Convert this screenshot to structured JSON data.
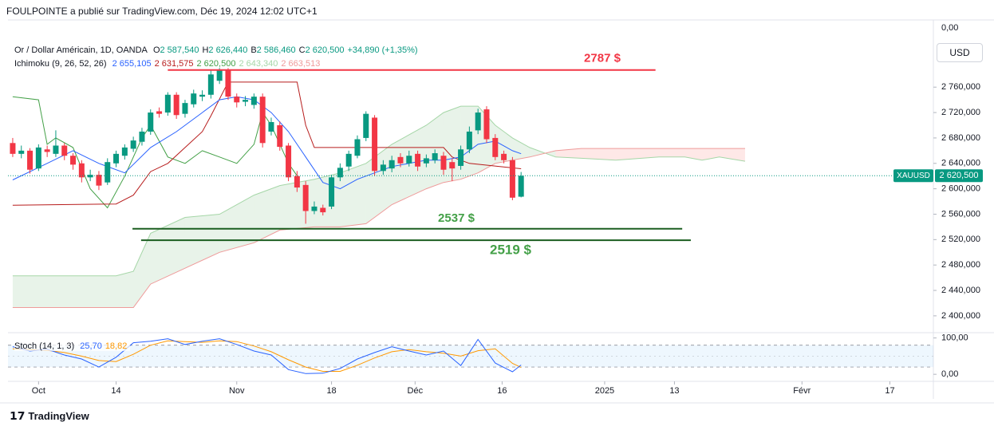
{
  "header": {
    "publisher": "FOULPOINTE a publié sur TradingView.com, Déc 19, 2024 12:02 UTC+1",
    "top_value": "0,00",
    "currency": "USD",
    "footer": "TradingView"
  },
  "chart_data": {
    "type": "candlestick",
    "symbol_title": "Or / Dollar Américain, 1D, OANDA",
    "ohlc_legend": [
      {
        "key": "O",
        "value": 2587.54,
        "label": "2 587,540"
      },
      {
        "key": "H",
        "value": 2626.44,
        "label": "2 626,440"
      },
      {
        "key": "B",
        "value": 2586.46,
        "label": "2 586,460"
      },
      {
        "key": "C",
        "value": 2620.5,
        "label": "2 620,500"
      }
    ],
    "change": {
      "value": 34.89,
      "label": "+34,890 (+1,35%)"
    },
    "up_color": "#089981",
    "down_color": "#f23645",
    "x": [
      0,
      1,
      2,
      3,
      4,
      5,
      6,
      7,
      8,
      9,
      10,
      11,
      12,
      13,
      14,
      15,
      16,
      17,
      18,
      19,
      20,
      21,
      22,
      23,
      24,
      25,
      26,
      27,
      28,
      29,
      30,
      31,
      32,
      33,
      34,
      35,
      36,
      37,
      38,
      39,
      40,
      41,
      42,
      43,
      44,
      45,
      46,
      47,
      48,
      49,
      50,
      51,
      52,
      53,
      54,
      55,
      56,
      57,
      58,
      59
    ],
    "open": [
      2672,
      2655,
      2660,
      2632,
      2662,
      2655,
      2668,
      2652,
      2640,
      2618,
      2622,
      2610,
      2640,
      2652,
      2663,
      2674,
      2690,
      2722,
      2720,
      2748,
      2718,
      2733,
      2745,
      2748,
      2770,
      2787,
      2745,
      2737,
      2732,
      2745,
      2690,
      2700,
      2668,
      2620,
      2606,
      2565,
      2570,
      2572,
      2618,
      2635,
      2652,
      2680,
      2712,
      2628,
      2632,
      2650,
      2640,
      2655,
      2640,
      2645,
      2652,
      2642,
      2636,
      2662,
      2692,
      2725,
      2680,
      2655,
      2645,
      2587.54
    ],
    "high": [
      2680,
      2668,
      2664,
      2670,
      2668,
      2692,
      2672,
      2656,
      2645,
      2630,
      2628,
      2648,
      2660,
      2670,
      2682,
      2696,
      2725,
      2728,
      2752,
      2752,
      2740,
      2756,
      2755,
      2786,
      2790,
      2790,
      2750,
      2746,
      2750,
      2750,
      2712,
      2706,
      2672,
      2628,
      2612,
      2580,
      2575,
      2622,
      2640,
      2660,
      2684,
      2722,
      2716,
      2645,
      2652,
      2656,
      2660,
      2660,
      2654,
      2662,
      2658,
      2648,
      2668,
      2698,
      2726,
      2730,
      2686,
      2660,
      2650,
      2626.44
    ],
    "low": [
      2650,
      2648,
      2624,
      2628,
      2650,
      2650,
      2645,
      2630,
      2610,
      2612,
      2598,
      2606,
      2634,
      2646,
      2658,
      2668,
      2685,
      2712,
      2715,
      2710,
      2712,
      2728,
      2738,
      2742,
      2765,
      2740,
      2728,
      2730,
      2726,
      2665,
      2684,
      2660,
      2612,
      2595,
      2545,
      2560,
      2558,
      2568,
      2612,
      2628,
      2648,
      2675,
      2620,
      2622,
      2626,
      2634,
      2635,
      2628,
      2634,
      2640,
      2622,
      2612,
      2630,
      2656,
      2686,
      2672,
      2645,
      2640,
      2582,
      2586.46
    ],
    "close": [
      2655,
      2660,
      2630,
      2665,
      2658,
      2668,
      2652,
      2638,
      2618,
      2622,
      2605,
      2642,
      2655,
      2665,
      2676,
      2690,
      2720,
      2718,
      2748,
      2716,
      2735,
      2750,
      2748,
      2780,
      2786,
      2745,
      2736,
      2740,
      2745,
      2672,
      2705,
      2666,
      2618,
      2602,
      2565,
      2572,
      2563,
      2618,
      2633,
      2655,
      2678,
      2718,
      2628,
      2638,
      2645,
      2640,
      2652,
      2635,
      2648,
      2656,
      2630,
      2632,
      2662,
      2690,
      2720,
      2678,
      2650,
      2645,
      2586,
      2620.5
    ],
    "xlim": [
      -0.55,
      106.85
    ],
    "xticks": [
      {
        "value": 3,
        "label": "Oct"
      },
      {
        "value": 12,
        "label": "14"
      },
      {
        "value": 26,
        "label": "Nov"
      },
      {
        "value": 37,
        "label": "18"
      },
      {
        "value": 46.7,
        "label": "Déc"
      },
      {
        "value": 56.8,
        "label": "16"
      },
      {
        "value": 68.7,
        "label": "2025"
      },
      {
        "value": 76.8,
        "label": "13"
      },
      {
        "value": 91.6,
        "label": "Févr"
      },
      {
        "value": 101.8,
        "label": "17"
      }
    ],
    "ylim": [
      2376,
      2862
    ],
    "yticks": [
      {
        "value": 2760,
        "label": "2 760,000"
      },
      {
        "value": 2720,
        "label": "2 720,000"
      },
      {
        "value": 2680,
        "label": "2 680,000"
      },
      {
        "value": 2640,
        "label": "2 640,000"
      },
      {
        "value": 2600,
        "label": "2 600,000"
      },
      {
        "value": 2560,
        "label": "2 560,000"
      },
      {
        "value": 2520,
        "label": "2 520,000"
      },
      {
        "value": 2480,
        "label": "2 480,000"
      },
      {
        "value": 2440,
        "label": "2 440,000"
      },
      {
        "value": 2400,
        "label": "2 400,000"
      }
    ],
    "last_price": {
      "symbol": "XAUUSD",
      "value": 2620.5,
      "label": "2 620,500"
    },
    "ichimoku": {
      "name": "Ichimoku (9, 26, 52, 26)",
      "tenkan": {
        "color": "#2962ff",
        "last": {
          "value": 2655.105,
          "label": "2 655,105"
        },
        "x": [
          0,
          4,
          7,
          10,
          13,
          16,
          19,
          22,
          24,
          26,
          28,
          30,
          32,
          34,
          36,
          38,
          40,
          42,
          44,
          46,
          48,
          50,
          52,
          54,
          56,
          58,
          59
        ],
        "values": [
          2614,
          2640,
          2660,
          2640,
          2625,
          2665,
          2690,
          2720,
          2740,
          2745,
          2740,
          2720,
          2690,
          2650,
          2610,
          2600,
          2615,
          2625,
          2635,
          2640,
          2645,
          2645,
          2650,
          2670,
          2675,
          2660,
          2655.105
        ]
      },
      "kijun": {
        "color": "#b71c1c",
        "last": {
          "value": 2631.575,
          "label": "2 631,575"
        },
        "x": [
          0,
          12,
          14,
          16,
          18,
          20,
          22,
          23,
          25,
          33,
          34,
          35,
          50,
          51,
          53,
          59
        ],
        "values": [
          2574,
          2576,
          2590,
          2627,
          2640,
          2665,
          2690,
          2715,
          2768,
          2768,
          2700,
          2665,
          2665,
          2650,
          2640,
          2631.575
        ]
      },
      "chikou": {
        "color": "#43a047",
        "last": {
          "value": 2620.5,
          "label": "2 620,500"
        },
        "x": [
          0,
          3,
          4,
          5,
          7,
          9,
          11,
          13,
          15,
          16,
          18,
          20,
          22,
          24,
          26,
          28,
          29,
          30,
          31,
          32,
          33
        ],
        "values": [
          2745,
          2740,
          2670,
          2680,
          2665,
          2600,
          2570,
          2620,
          2680,
          2700,
          2650,
          2640,
          2660,
          2650,
          2640,
          2670,
          2720,
          2700,
          2670,
          2640,
          2620.5
        ]
      },
      "cloud_x": [
        0,
        4,
        8,
        12,
        14,
        16,
        20,
        24,
        28,
        31,
        35,
        38,
        41,
        44,
        48,
        50,
        52,
        54,
        56,
        58,
        60,
        63,
        66,
        70,
        75,
        78,
        80,
        82,
        85
      ],
      "span_a": {
        "color": "#a5d6a7",
        "last": {
          "value": 2643.34,
          "label": "2 643,340"
        },
        "values": [
          2463,
          2463,
          2463,
          2463,
          2470,
          2530,
          2555,
          2560,
          2590,
          2605,
          2615,
          2625,
          2640,
          2670,
          2700,
          2720,
          2730,
          2730,
          2700,
          2680,
          2665,
          2650,
          2648,
          2645,
          2650,
          2650,
          2645,
          2650,
          2643.34
        ]
      },
      "span_b": {
        "color": "#ef9a9a",
        "last": {
          "value": 2663.513,
          "label": "2 663,513"
        },
        "values": [
          2413,
          2413,
          2413,
          2413,
          2413,
          2450,
          2475,
          2500,
          2515,
          2535,
          2540,
          2540,
          2545,
          2575,
          2600,
          2610,
          2615,
          2625,
          2640,
          2645,
          2650,
          2660,
          2663.513,
          2663.513,
          2663.513,
          2663.513,
          2663.513,
          2663.513,
          2663.513
        ]
      },
      "cloud_colors": {
        "up": "rgba(67,160,71,0.12)",
        "down": "rgba(244,67,54,0.12)"
      }
    },
    "annotations": [
      {
        "label": "2787 $",
        "value": 2787,
        "x": [
          18,
          74.6
        ],
        "color": "#f23645"
      },
      {
        "label": "2537 $",
        "value": 2537,
        "x": [
          13.9,
          77.7
        ],
        "color": "#1b5e20"
      },
      {
        "label": "2519 $",
        "value": 2519,
        "x": [
          14.9,
          78.7
        ],
        "color": "#1b5e20"
      }
    ],
    "stoch": {
      "name": "Stoch (14, 1, 3)",
      "ylim": [
        -15,
        108
      ],
      "yticks": [
        {
          "value": 100,
          "label": "100,00"
        },
        {
          "value": 0,
          "label": "0,00"
        }
      ],
      "bands": [
        20,
        80
      ],
      "k": {
        "color": "#2962ff",
        "last": {
          "value": 25.7,
          "label": "25,70"
        },
        "x": [
          0,
          2,
          4,
          6,
          8,
          10,
          12,
          14,
          16,
          18,
          20,
          22,
          24,
          26,
          28,
          30,
          32,
          34,
          36,
          38,
          40,
          42,
          44,
          46,
          48,
          50,
          52,
          54,
          56,
          58,
          59
        ],
        "values": [
          76,
          64,
          69,
          53,
          42,
          20,
          47,
          87,
          91,
          98,
          82,
          91,
          98,
          82,
          64,
          53,
          13,
          2,
          3,
          16,
          42,
          60,
          76,
          64,
          53,
          64,
          24,
          96,
          31,
          7,
          25.7
        ]
      },
      "d": {
        "color": "#ff9800",
        "last": {
          "value": 18.82,
          "label": "18,82"
        },
        "x": [
          0,
          2,
          4,
          6,
          8,
          10,
          12,
          14,
          16,
          18,
          20,
          22,
          24,
          26,
          28,
          30,
          32,
          34,
          36,
          38,
          40,
          42,
          44,
          46,
          48,
          50,
          52,
          54,
          56,
          58,
          59
        ],
        "values": [
          70,
          68,
          66,
          60,
          50,
          38,
          35,
          55,
          80,
          92,
          90,
          88,
          92,
          90,
          78,
          62,
          40,
          20,
          8,
          8,
          25,
          45,
          62,
          68,
          62,
          58,
          50,
          65,
          70,
          30,
          18.82
        ]
      }
    }
  }
}
